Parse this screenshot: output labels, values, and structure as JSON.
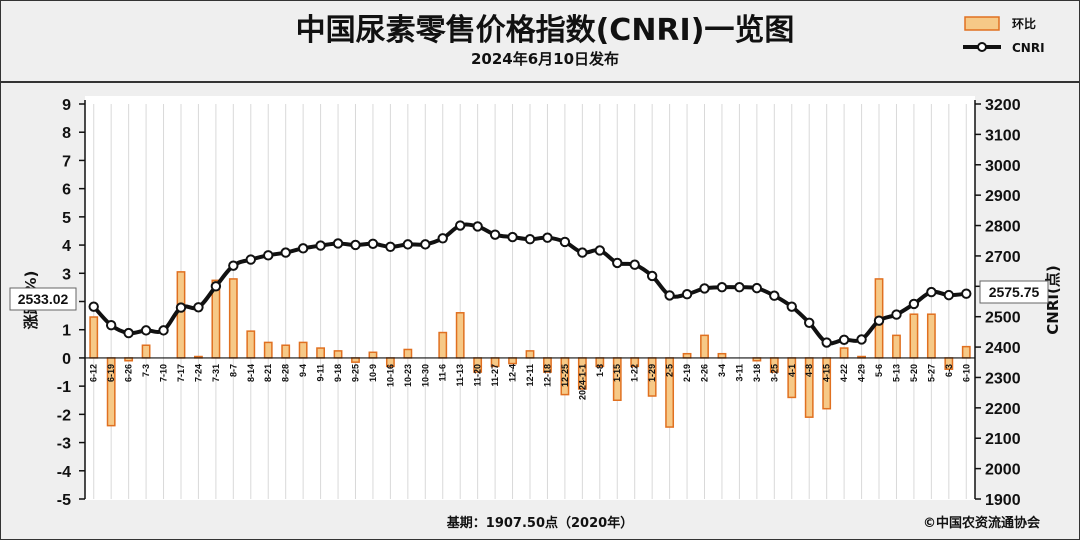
{
  "header": {
    "title": "中国尿素零售价格指数(CNRI)一览图",
    "subtitle": "2024年6月10日发布"
  },
  "legend": {
    "bar_label": "环比",
    "line_label": "CNRI"
  },
  "axes": {
    "left_title": "涨跌(%)",
    "right_title": "CNRI(点)"
  },
  "callouts": {
    "start_value": "2533.02",
    "end_value": "2575.75"
  },
  "footer": {
    "base": "基期：1907.50点（2020年）",
    "copyright": "©中国农资流通协会"
  },
  "colors": {
    "bar_fill": "#f6c987",
    "bar_stroke": "#e07020",
    "line": "#111111",
    "header_bg": "#efefef",
    "plot_bg": "#ffffff"
  },
  "chart_data": {
    "type": "bar+line",
    "title": "中国尿素零售价格指数(CNRI)一览图",
    "subtitle": "2024年6月10日发布",
    "ylabel": "涨跌(%)",
    "y2label": "CNRI(点)",
    "ylim": [
      -5,
      9
    ],
    "yticks": [
      9,
      8,
      7,
      6,
      5,
      4,
      3,
      2,
      1,
      0,
      -1,
      -2,
      -3,
      -4,
      -5
    ],
    "y2lim": [
      1900,
      3200
    ],
    "y2ticks": [
      3200,
      3100,
      3000,
      2900,
      2800,
      2700,
      2600,
      2500,
      2400,
      2300,
      2200,
      2100,
      2000,
      1900
    ],
    "grid": "vertical",
    "legend_position": "top-right",
    "categories": [
      "6-12",
      "6-19",
      "6-26",
      "7-3",
      "7-10",
      "7-17",
      "7-24",
      "7-31",
      "8-7",
      "8-14",
      "8-21",
      "8-28",
      "9-4",
      "9-11",
      "9-18",
      "9-25",
      "10-9",
      "10-16",
      "10-23",
      "10-30",
      "11-6",
      "11-13",
      "11-20",
      "11-27",
      "12-4",
      "12-11",
      "12-18",
      "12-25",
      "2024-1-1",
      "1-8",
      "1-15",
      "1-22",
      "1-29",
      "2-5",
      "2-19",
      "2-26",
      "3-4",
      "3-11",
      "3-18",
      "3-25",
      "4-1",
      "4-8",
      "4-15",
      "4-22",
      "4-29",
      "5-6",
      "5-13",
      "5-20",
      "5-27",
      "6-3",
      "6-10"
    ],
    "series": [
      {
        "name": "环比",
        "type": "bar",
        "axis": "left",
        "values": [
          1.45,
          -2.4,
          -0.1,
          0.45,
          0.0,
          3.05,
          0.05,
          2.75,
          2.8,
          0.95,
          0.55,
          0.45,
          0.55,
          0.35,
          0.25,
          -0.15,
          0.2,
          -0.3,
          0.3,
          0.0,
          0.9,
          1.6,
          -0.5,
          -0.3,
          -0.2,
          0.25,
          -0.5,
          -1.3,
          -1.1,
          -0.3,
          -1.5,
          -0.3,
          -1.35,
          -2.45,
          0.15,
          0.8,
          0.15,
          0.0,
          -0.1,
          -0.5,
          -1.4,
          -2.1,
          -1.8,
          0.35,
          0.05,
          2.8,
          0.8,
          1.55,
          1.55,
          -0.4,
          0.4
        ]
      },
      {
        "name": "CNRI",
        "type": "line",
        "axis": "right",
        "values": [
          2533.02,
          2472,
          2446,
          2455,
          2455,
          2530,
          2531,
          2600,
          2668,
          2688,
          2702,
          2711,
          2725,
          2734,
          2741,
          2736,
          2740,
          2730,
          2738,
          2738,
          2758,
          2800,
          2797,
          2770,
          2762,
          2755,
          2760,
          2746,
          2711,
          2718,
          2677,
          2671,
          2634,
          2570,
          2574,
          2593,
          2597,
          2597,
          2594,
          2569,
          2533,
          2480,
          2415,
          2424,
          2425,
          2487,
          2507,
          2542,
          2581,
          2571,
          2575.75
        ]
      }
    ]
  }
}
